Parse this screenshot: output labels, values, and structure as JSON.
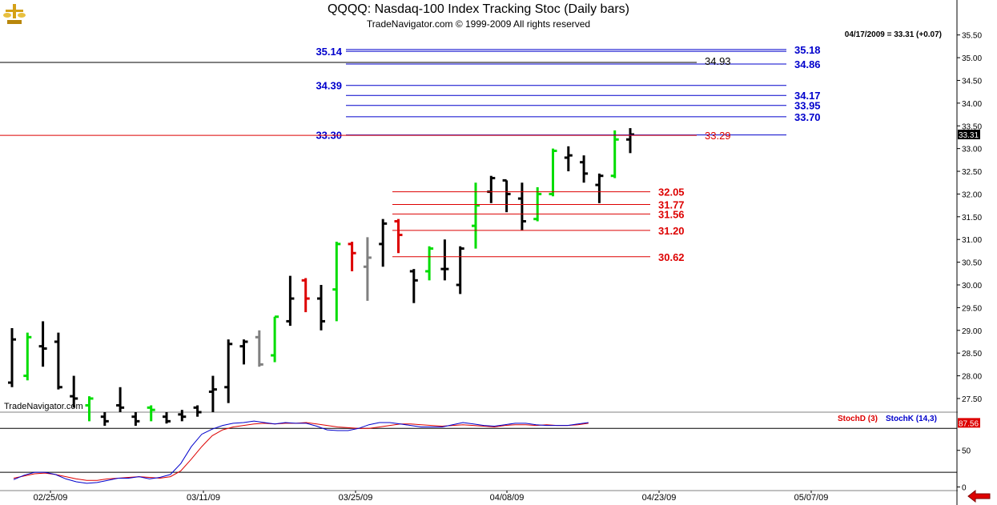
{
  "header": {
    "title": "QQQQ:  Nasdaq-100 Index Tracking Stoc  (Daily bars)",
    "copyright": "TradeNavigator.com © 1999-2009 All rights reserved"
  },
  "quote": "04/17/2009 = 33.31 (+0.07)",
  "watermark": "TradeNavigator.com",
  "last_price_label": "33.31",
  "stoch_value_label": "87.56",
  "colors": {
    "up_bar": "#00dd00",
    "down_bar": "#dd0000",
    "neutral_bar": "#808080",
    "bar": "#000000",
    "resistance": "#0000cc",
    "support": "#dd0000",
    "stoch_d": "#dd0000",
    "stoch_k": "#0000cc"
  },
  "chart_data": [
    {
      "type": "ohlc",
      "title": "QQQQ:  Nasdaq-100 Index Tracking Stoc  (Daily bars)",
      "ylim": [
        27.2,
        35.6
      ],
      "y_ticks": [
        "27.50",
        "28.00",
        "28.50",
        "29.00",
        "29.50",
        "30.00",
        "30.50",
        "31.00",
        "31.50",
        "32.00",
        "32.50",
        "33.00",
        "33.50",
        "34.00",
        "34.50",
        "35.00",
        "35.50"
      ],
      "x_ticks": [
        "02/25/09",
        "03/11/09",
        "03/25/09",
        "04/08/09",
        "04/23/09",
        "05/07/09"
      ],
      "bars": [
        {
          "o": 27.85,
          "h": 29.05,
          "l": 27.75,
          "c": 28.8,
          "col": "bar"
        },
        {
          "o": 28.0,
          "h": 28.95,
          "l": 27.9,
          "c": 28.85,
          "col": "up_bar"
        },
        {
          "o": 28.65,
          "h": 29.2,
          "l": 28.2,
          "c": 28.6,
          "col": "bar"
        },
        {
          "o": 28.75,
          "h": 28.95,
          "l": 27.7,
          "c": 27.75,
          "col": "bar"
        },
        {
          "o": 27.55,
          "h": 28.0,
          "l": 27.3,
          "c": 27.5,
          "col": "bar"
        },
        {
          "o": 27.35,
          "h": 27.55,
          "l": 27.0,
          "c": 27.5,
          "col": "up_bar"
        },
        {
          "o": 27.1,
          "h": 27.2,
          "l": 26.9,
          "c": 27.0,
          "col": "bar"
        },
        {
          "o": 27.35,
          "h": 27.75,
          "l": 27.2,
          "c": 27.3,
          "col": "bar"
        },
        {
          "o": 27.1,
          "h": 27.2,
          "l": 26.9,
          "c": 27.0,
          "col": "bar"
        },
        {
          "o": 27.3,
          "h": 27.35,
          "l": 27.0,
          "c": 27.25,
          "col": "up_bar"
        },
        {
          "o": 27.1,
          "h": 27.2,
          "l": 26.95,
          "c": 27.0,
          "col": "bar"
        },
        {
          "o": 27.15,
          "h": 27.25,
          "l": 27.0,
          "c": 27.1,
          "col": "bar"
        },
        {
          "o": 27.3,
          "h": 27.35,
          "l": 27.1,
          "c": 27.2,
          "col": "bar"
        },
        {
          "o": 27.65,
          "h": 28.0,
          "l": 27.2,
          "c": 27.7,
          "col": "bar"
        },
        {
          "o": 27.75,
          "h": 28.8,
          "l": 27.4,
          "c": 28.7,
          "col": "bar"
        },
        {
          "o": 28.65,
          "h": 28.8,
          "l": 28.25,
          "c": 28.75,
          "col": "bar"
        },
        {
          "o": 28.85,
          "h": 29.0,
          "l": 28.2,
          "c": 28.25,
          "col": "neutral_bar"
        },
        {
          "o": 28.45,
          "h": 29.3,
          "l": 28.3,
          "c": 29.3,
          "col": "up_bar"
        },
        {
          "o": 29.2,
          "h": 30.2,
          "l": 29.1,
          "c": 29.7,
          "col": "bar"
        },
        {
          "o": 30.1,
          "h": 30.15,
          "l": 29.4,
          "c": 29.7,
          "col": "down_bar"
        },
        {
          "o": 29.7,
          "h": 30.0,
          "l": 29.0,
          "c": 29.2,
          "col": "bar"
        },
        {
          "o": 29.9,
          "h": 30.95,
          "l": 29.2,
          "c": 30.9,
          "col": "up_bar"
        },
        {
          "o": 30.9,
          "h": 30.95,
          "l": 30.3,
          "c": 30.7,
          "col": "down_bar"
        },
        {
          "o": 30.4,
          "h": 31.05,
          "l": 29.65,
          "c": 30.6,
          "col": "neutral_bar"
        },
        {
          "o": 30.9,
          "h": 31.45,
          "l": 30.4,
          "c": 31.35,
          "col": "bar"
        },
        {
          "o": 31.4,
          "h": 31.45,
          "l": 30.7,
          "c": 31.1,
          "col": "down_bar"
        },
        {
          "o": 30.3,
          "h": 30.35,
          "l": 29.6,
          "c": 30.1,
          "col": "bar"
        },
        {
          "o": 30.3,
          "h": 30.85,
          "l": 30.1,
          "c": 30.8,
          "col": "up_bar"
        },
        {
          "o": 30.35,
          "h": 31.0,
          "l": 30.1,
          "c": 30.35,
          "col": "bar"
        },
        {
          "o": 30.0,
          "h": 30.85,
          "l": 29.8,
          "c": 30.8,
          "col": "bar"
        },
        {
          "o": 31.3,
          "h": 32.25,
          "l": 30.8,
          "c": 31.75,
          "col": "up_bar"
        },
        {
          "o": 32.05,
          "h": 32.4,
          "l": 31.8,
          "c": 32.35,
          "col": "bar"
        },
        {
          "o": 32.3,
          "h": 32.3,
          "l": 31.6,
          "c": 32.0,
          "col": "bar"
        },
        {
          "o": 31.9,
          "h": 32.25,
          "l": 31.2,
          "c": 31.4,
          "col": "bar"
        },
        {
          "o": 31.45,
          "h": 32.15,
          "l": 31.4,
          "c": 32.0,
          "col": "up_bar"
        },
        {
          "o": 32.0,
          "h": 33.0,
          "l": 31.95,
          "c": 32.95,
          "col": "up_bar"
        },
        {
          "o": 32.8,
          "h": 33.05,
          "l": 32.5,
          "c": 32.85,
          "col": "bar"
        },
        {
          "o": 32.7,
          "h": 32.85,
          "l": 32.25,
          "c": 32.45,
          "col": "bar"
        },
        {
          "o": 32.2,
          "h": 32.45,
          "l": 31.8,
          "c": 32.4,
          "col": "bar"
        },
        {
          "o": 32.4,
          "h": 33.4,
          "l": 32.35,
          "c": 33.2,
          "col": "up_bar"
        },
        {
          "o": 33.2,
          "h": 33.45,
          "l": 32.9,
          "c": 33.31,
          "col": "bar"
        }
      ],
      "resistance_levels": [
        {
          "price": 35.18,
          "label": "35.18",
          "side": "right"
        },
        {
          "price": 35.14,
          "label": "35.14",
          "side": "left"
        },
        {
          "price": 34.86,
          "label": "34.86",
          "side": "right"
        },
        {
          "price": 34.39,
          "label": "34.39",
          "side": "left"
        },
        {
          "price": 34.17,
          "label": "34.17",
          "side": "right"
        },
        {
          "price": 33.95,
          "label": "33.95",
          "side": "right"
        },
        {
          "price": 33.7,
          "label": "33.70",
          "side": "right"
        },
        {
          "price": 33.3,
          "label": "33.30",
          "side": "left"
        }
      ],
      "reference_lines": [
        {
          "price": 34.93,
          "label": "34.93",
          "color": "bar"
        },
        {
          "price": 33.29,
          "label": "33.29",
          "color": "support"
        }
      ],
      "support_levels": [
        {
          "price": 32.05,
          "label": "32.05"
        },
        {
          "price": 31.77,
          "label": "31.77"
        },
        {
          "price": 31.56,
          "label": "31.56"
        },
        {
          "price": 31.2,
          "label": "31.20"
        },
        {
          "price": 30.62,
          "label": "30.62"
        }
      ]
    },
    {
      "type": "line",
      "legend": [
        "StochD (3)",
        "StochK (14,3)"
      ],
      "ylim": [
        -5,
        100
      ],
      "y_ticks": [
        "0",
        "50",
        "100"
      ],
      "y_ticks_shown": [
        "50",
        "0"
      ],
      "reference_levels": [
        80,
        20
      ],
      "series": [
        {
          "name": "StochD (3)",
          "color": "stoch_d",
          "values": [
            12,
            15,
            18,
            19,
            17,
            14,
            11,
            9,
            9,
            11,
            12,
            13,
            14,
            13,
            12,
            14,
            22,
            38,
            55,
            70,
            78,
            82,
            84,
            86,
            87,
            86,
            87,
            87,
            88,
            86,
            84,
            82,
            81,
            80,
            80,
            82,
            84,
            86,
            86,
            85,
            84,
            83,
            84,
            85,
            84,
            83,
            82,
            84,
            85,
            85,
            84,
            85,
            84,
            84,
            85,
            87
          ]
        },
        {
          "name": "StochK (14,3)",
          "color": "stoch_k",
          "values": [
            10,
            16,
            20,
            20,
            17,
            11,
            7,
            5,
            6,
            9,
            12,
            12,
            14,
            11,
            13,
            17,
            32,
            55,
            72,
            79,
            84,
            87,
            88,
            90,
            88,
            86,
            88,
            87,
            87,
            83,
            78,
            77,
            77,
            80,
            85,
            88,
            88,
            86,
            84,
            82,
            82,
            82,
            85,
            88,
            86,
            84,
            83,
            85,
            87,
            87,
            85,
            84,
            84,
            84,
            86,
            88
          ]
        }
      ]
    }
  ]
}
